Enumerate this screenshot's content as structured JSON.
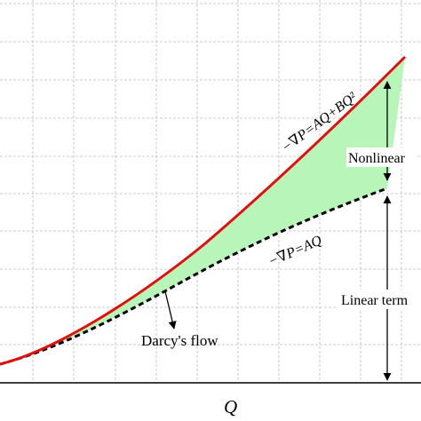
{
  "xlabel": "Q",
  "curves": {
    "nonlinear_eq": "−∇P=AQ+BQ²",
    "linear_eq": "−∇P=AQ"
  },
  "labels": {
    "nonlinear": "Nonlinear",
    "linear_term": "Linear term",
    "darcy": "Darcy's flow"
  },
  "colors": {
    "nonlinear_curve": "#e01010",
    "linear_line": "#000000",
    "fill": "#b8f5b8",
    "grid": "#bdbdbd"
  }
}
